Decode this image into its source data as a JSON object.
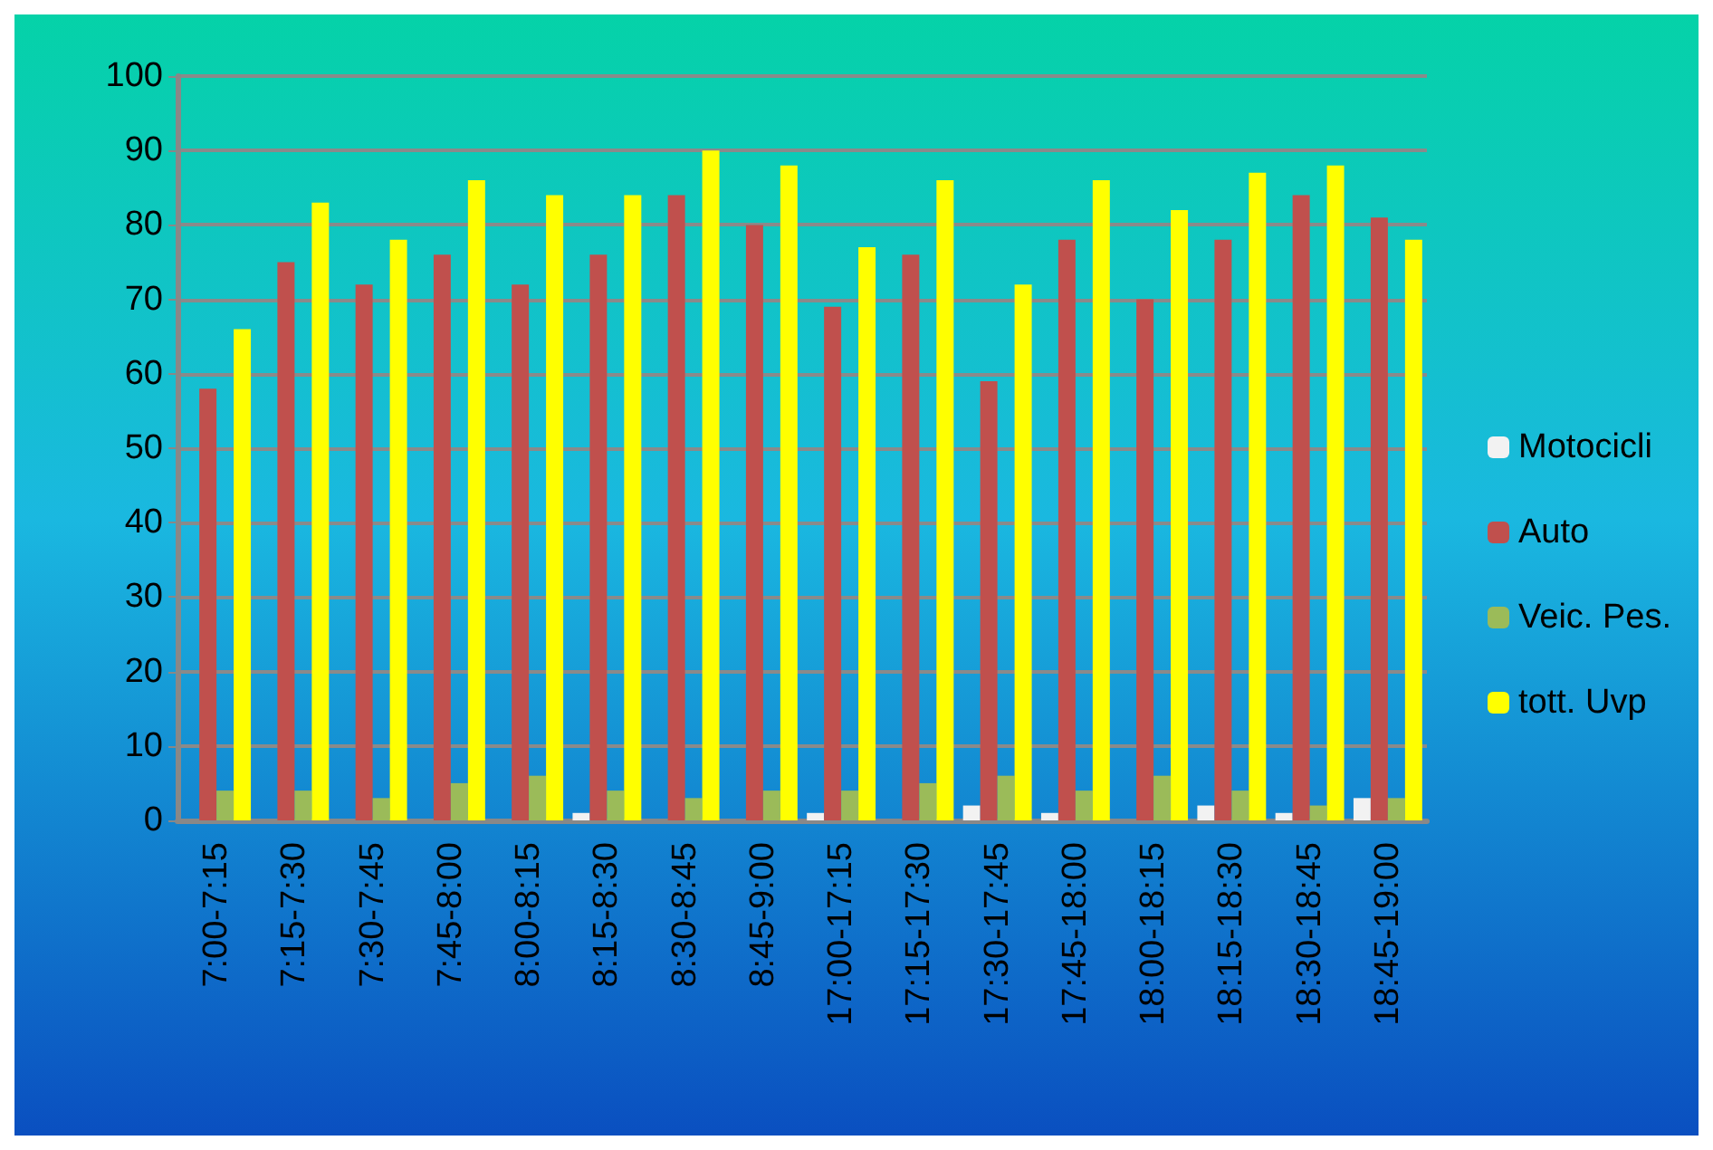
{
  "chart_data": {
    "type": "bar",
    "categories": [
      "7:00-7:15",
      "7:15-7:30",
      "7:30-7:45",
      "7:45-8:00",
      "8:00-8:15",
      "8:15-8:30",
      "8:30-8:45",
      "8:45-9:00",
      "17:00-17:15",
      "17:15-17:30",
      "17:30-17:45",
      "17:45-18:00",
      "18:00-18:15",
      "18:15-18:30",
      "18:30-18:45",
      "18:45-19:00"
    ],
    "series": [
      {
        "name": "Motocicli",
        "color": "#f2f2f2",
        "values": [
          0,
          0,
          0,
          0,
          0,
          1,
          0,
          0,
          1,
          0,
          2,
          1,
          0,
          2,
          1,
          3
        ]
      },
      {
        "name": "Auto",
        "color": "#c0504d",
        "values": [
          58,
          75,
          72,
          76,
          72,
          76,
          84,
          80,
          69,
          76,
          59,
          78,
          70,
          78,
          84,
          81
        ]
      },
      {
        "name": "Veic. Pes.",
        "color": "#9bbb59",
        "values": [
          4,
          4,
          3,
          5,
          6,
          4,
          3,
          4,
          4,
          5,
          6,
          4,
          6,
          4,
          2,
          3
        ]
      },
      {
        "name": "tott. Uvp",
        "color": "#ffff00",
        "values": [
          66,
          83,
          78,
          86,
          84,
          84,
          90,
          88,
          77,
          86,
          72,
          86,
          82,
          87,
          88,
          78
        ]
      }
    ],
    "ylim": [
      0,
      100
    ],
    "yticks": [
      0,
      10,
      20,
      30,
      40,
      50,
      60,
      70,
      80,
      90,
      100
    ],
    "grid": "y",
    "legend": "right"
  }
}
